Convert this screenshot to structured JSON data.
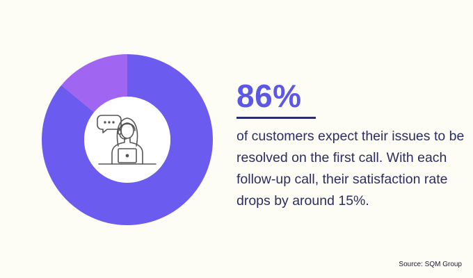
{
  "chart_data": {
    "type": "pie",
    "donut": true,
    "slices": [
      {
        "label": "",
        "value": 86,
        "color": "#6b5bef"
      },
      {
        "label": "",
        "value": 14,
        "color": "#a066f2"
      }
    ],
    "center_icon": "customer-support-agent-with-laptop-icon"
  },
  "stat": {
    "value": "86%",
    "description": "of customers expect their issues to be resolved on the first call. With each follow-up call, their satisfaction rate drops by around 15%."
  },
  "source": "Source: SQM Group",
  "colors": {
    "background": "#fdfcf5",
    "accent": "#5b58e6",
    "text": "#2b2d63"
  }
}
